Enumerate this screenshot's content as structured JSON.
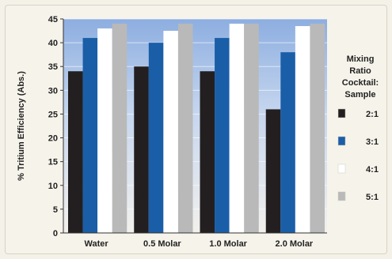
{
  "chart_data": {
    "type": "bar",
    "categories": [
      "Water",
      "0.5 Molar",
      "1.0 Molar",
      "2.0 Molar"
    ],
    "series": [
      {
        "name": "2:1",
        "values": [
          34,
          35,
          34,
          26
        ],
        "color": "#231f20"
      },
      {
        "name": "3:1",
        "values": [
          41,
          40,
          41,
          38
        ],
        "color": "#1a5ea8"
      },
      {
        "name": "4:1",
        "values": [
          43,
          42.5,
          44,
          43.5
        ],
        "color": "#ffffff"
      },
      {
        "name": "5:1",
        "values": [
          44,
          44,
          44,
          44
        ],
        "color": "#b9b9b9"
      }
    ],
    "ylabel": "% Tritium Efficiency (Abs.)",
    "ylim": [
      0,
      45
    ],
    "yticks": [
      0,
      5,
      10,
      15,
      20,
      25,
      30,
      35,
      40,
      45
    ],
    "legend_title": [
      "Mixing",
      "Ratio",
      "Cocktail:",
      "Sample"
    ],
    "legend_position": "right",
    "plot_background": {
      "top": "#8daee0",
      "bottom": "#f2f0ec"
    },
    "grid": true
  }
}
